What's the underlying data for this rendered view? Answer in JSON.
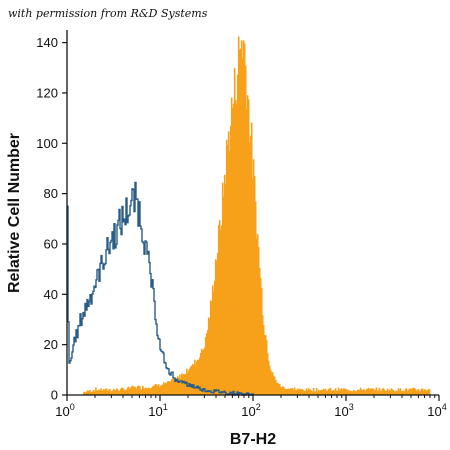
{
  "watermark": "with permission from R&D Systems",
  "chart_data": {
    "type": "histogram",
    "xlabel": "B7-H2",
    "ylabel": "Relative Cell Number",
    "xscale": "log",
    "xlim": [
      1,
      10000
    ],
    "ylim": [
      0,
      145
    ],
    "x_tick_labels": [
      {
        "base": "10",
        "exp": "0",
        "value": 1
      },
      {
        "base": "10",
        "exp": "1",
        "value": 10
      },
      {
        "base": "10",
        "exp": "2",
        "value": 100
      },
      {
        "base": "10",
        "exp": "3",
        "value": 1000
      },
      {
        "base": "10",
        "exp": "4",
        "value": 10000
      }
    ],
    "y_ticks": [
      0,
      20,
      40,
      60,
      80,
      100,
      120,
      140
    ],
    "grid": false,
    "legend": "none",
    "series": [
      {
        "style": "filled",
        "color": "#F7A11A",
        "points": [
          [
            1.5,
            1
          ],
          [
            2,
            2
          ],
          [
            3,
            2
          ],
          [
            4,
            2
          ],
          [
            5,
            3
          ],
          [
            7,
            3
          ],
          [
            10,
            4
          ],
          [
            13,
            5
          ],
          [
            16,
            7
          ],
          [
            20,
            10
          ],
          [
            25,
            14
          ],
          [
            30,
            20
          ],
          [
            35,
            35
          ],
          [
            40,
            55
          ],
          [
            45,
            70
          ],
          [
            50,
            90
          ],
          [
            55,
            105
          ],
          [
            60,
            115
          ],
          [
            65,
            125
          ],
          [
            70,
            135
          ],
          [
            75,
            142
          ],
          [
            80,
            138
          ],
          [
            85,
            125
          ],
          [
            90,
            112
          ],
          [
            95,
            100
          ],
          [
            100,
            88
          ],
          [
            110,
            65
          ],
          [
            120,
            45
          ],
          [
            130,
            28
          ],
          [
            150,
            12
          ],
          [
            170,
            6
          ],
          [
            200,
            3
          ],
          [
            300,
            2
          ],
          [
            500,
            2
          ],
          [
            1000,
            2
          ],
          [
            3000,
            2
          ],
          [
            8000,
            2
          ]
        ]
      },
      {
        "style": "outline",
        "color": "#2A5C86",
        "points": [
          [
            1,
            75
          ],
          [
            1.02,
            30
          ],
          [
            1.05,
            12
          ],
          [
            1.1,
            15
          ],
          [
            1.2,
            22
          ],
          [
            1.4,
            30
          ],
          [
            1.7,
            38
          ],
          [
            2,
            44
          ],
          [
            2.5,
            55
          ],
          [
            3,
            62
          ],
          [
            3.5,
            66
          ],
          [
            4,
            70
          ],
          [
            4.5,
            74
          ],
          [
            5,
            76
          ],
          [
            5.5,
            78
          ],
          [
            6,
            72
          ],
          [
            6.5,
            66
          ],
          [
            7,
            58
          ],
          [
            8,
            45
          ],
          [
            9,
            30
          ],
          [
            10,
            18
          ],
          [
            12,
            10
          ],
          [
            15,
            6
          ],
          [
            20,
            4
          ],
          [
            30,
            2
          ],
          [
            50,
            1
          ],
          [
            100,
            0
          ]
        ]
      }
    ]
  }
}
